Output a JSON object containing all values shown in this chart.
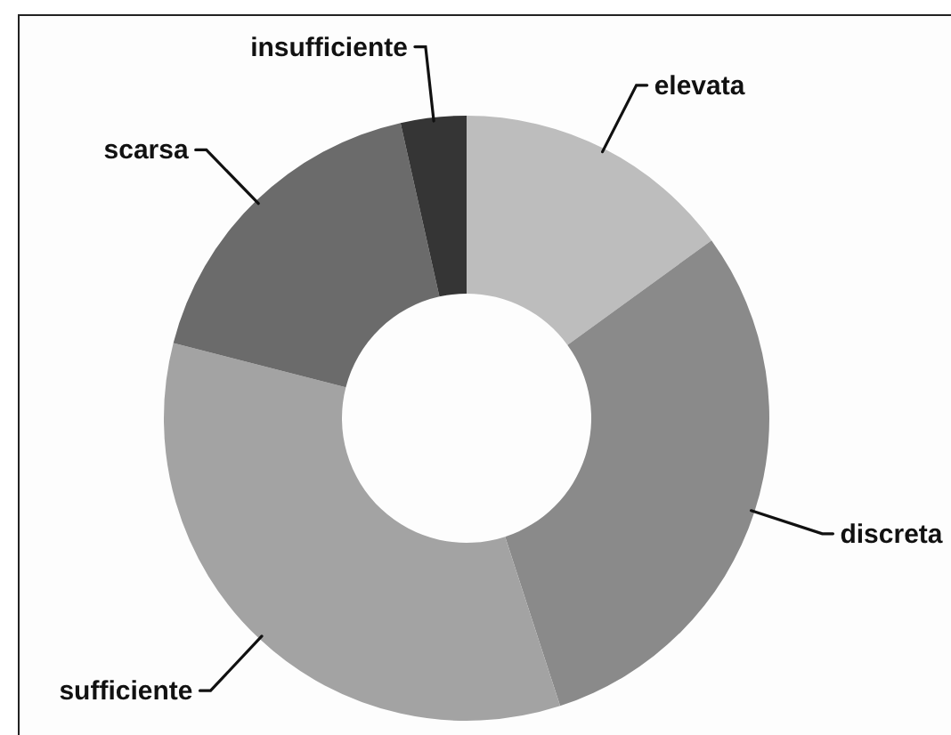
{
  "chart_data": {
    "type": "donut",
    "categories": [
      "elevata",
      "discreta",
      "sufficiente",
      "scarsa",
      "insufficiente"
    ],
    "values": [
      15,
      30,
      34,
      17.5,
      3.5
    ],
    "colors": [
      "#bdbdbd",
      "#8a8a8a",
      "#a3a3a3",
      "#6b6b6b",
      "#353535"
    ]
  }
}
